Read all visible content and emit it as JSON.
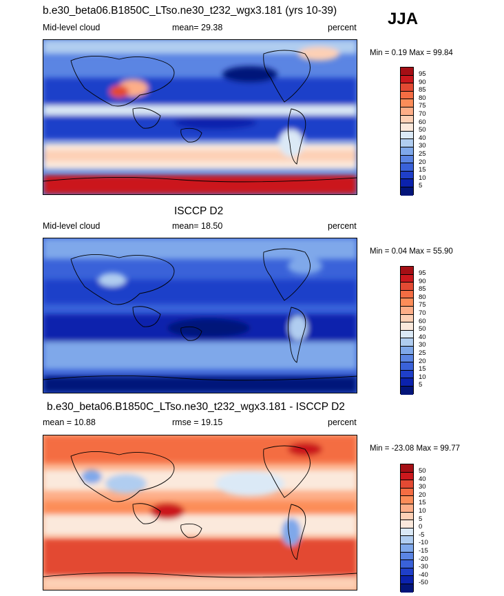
{
  "season": "JJA",
  "panels": [
    {
      "id": "model",
      "title": "b.e30_beta06.B1850C_LTso.ne30_t232_wgx3.181 (yrs 10-39)",
      "left_label": "Mid-level cloud",
      "center_label": "mean=  29.38",
      "right_label": "percent",
      "minmax": "Min =   0.19 Max =  99.84",
      "colorbar": {
        "labels": [
          "95",
          "90",
          "85",
          "80",
          "75",
          "70",
          "60",
          "50",
          "40",
          "30",
          "25",
          "20",
          "15",
          "10",
          "5"
        ],
        "colors": [
          "#a50f15",
          "#cb181d",
          "#e34a33",
          "#f46d43",
          "#fc8d59",
          "#fdae88",
          "#fdd0b5",
          "#fbe9dc",
          "#dbe9f6",
          "#b0cdf0",
          "#7fa8ea",
          "#5b85e3",
          "#3a62d9",
          "#1f3fc9",
          "#0b22ad",
          "#03157a"
        ]
      }
    },
    {
      "id": "obs",
      "title": "ISCCP D2",
      "left_label": "Mid-level cloud",
      "center_label": "mean=  18.50",
      "right_label": "percent",
      "minmax": "Min =   0.04 Max =  55.90",
      "colorbar": {
        "labels": [
          "95",
          "90",
          "85",
          "80",
          "75",
          "70",
          "60",
          "50",
          "40",
          "30",
          "25",
          "20",
          "15",
          "10",
          "5"
        ],
        "colors": [
          "#a50f15",
          "#cb181d",
          "#e34a33",
          "#f46d43",
          "#fc8d59",
          "#fdae88",
          "#fdd0b5",
          "#fbe9dc",
          "#dbe9f6",
          "#b0cdf0",
          "#7fa8ea",
          "#5b85e3",
          "#3a62d9",
          "#1f3fc9",
          "#0b22ad",
          "#03157a"
        ]
      }
    },
    {
      "id": "diff",
      "title": "b.e30_beta06.B1850C_LTso.ne30_t232_wgx3.181 - ISCCP D2",
      "left_label": "mean =  10.88",
      "center_label": "rmse =  19.15",
      "right_label": "percent",
      "minmax": "Min = -23.08 Max =  99.77",
      "colorbar": {
        "labels": [
          "50",
          "40",
          "30",
          "20",
          "15",
          "10",
          "5",
          "0",
          "-5",
          "-10",
          "-15",
          "-20",
          "-30",
          "-40",
          "-50"
        ],
        "colors": [
          "#a50f15",
          "#cb181d",
          "#e34a33",
          "#f46d43",
          "#fc8d59",
          "#fdae88",
          "#fdd0b5",
          "#fbe9dc",
          "#dbe9f6",
          "#b0cdf0",
          "#7fa8ea",
          "#5b85e3",
          "#3a62d9",
          "#1f3fc9",
          "#0b22ad",
          "#03157a"
        ]
      }
    }
  ]
}
